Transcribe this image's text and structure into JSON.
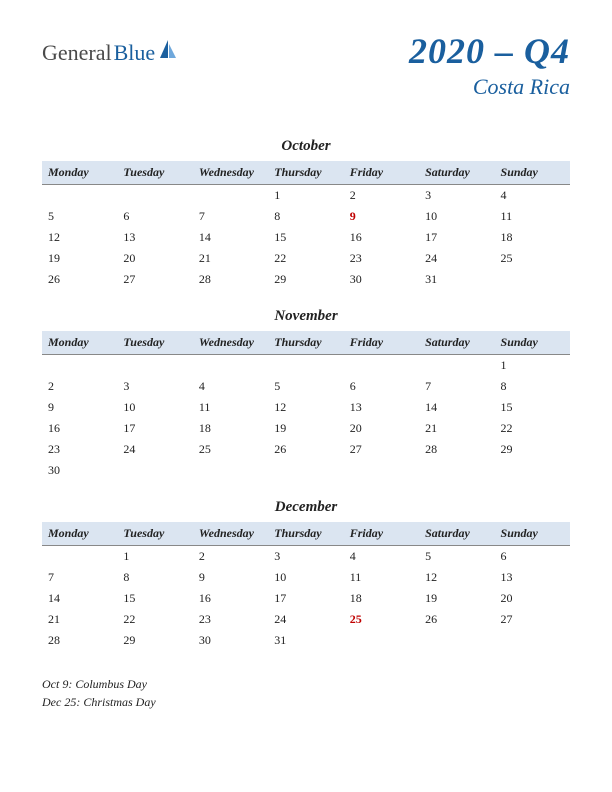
{
  "logo": {
    "part1": "General",
    "part2": "Blue"
  },
  "title": {
    "main": "2020 – Q4",
    "sub": "Costa Rica"
  },
  "day_headers": [
    "Monday",
    "Tuesday",
    "Wednesday",
    "Thursday",
    "Friday",
    "Saturday",
    "Sunday"
  ],
  "colors": {
    "header_bg": "#dbe5f1",
    "brand_blue": "#1a5f9e",
    "holiday_red": "#c00000",
    "text": "#222222",
    "background": "#ffffff"
  },
  "months": [
    {
      "name": "October",
      "weeks": [
        [
          "",
          "",
          "",
          "1",
          "2",
          "3",
          "4"
        ],
        [
          "5",
          "6",
          "7",
          "8",
          "9",
          "10",
          "11"
        ],
        [
          "12",
          "13",
          "14",
          "15",
          "16",
          "17",
          "18"
        ],
        [
          "19",
          "20",
          "21",
          "22",
          "23",
          "24",
          "25"
        ],
        [
          "26",
          "27",
          "28",
          "29",
          "30",
          "31",
          ""
        ]
      ],
      "holidays": [
        "9"
      ]
    },
    {
      "name": "November",
      "weeks": [
        [
          "",
          "",
          "",
          "",
          "",
          "",
          "1"
        ],
        [
          "2",
          "3",
          "4",
          "5",
          "6",
          "7",
          "8"
        ],
        [
          "9",
          "10",
          "11",
          "12",
          "13",
          "14",
          "15"
        ],
        [
          "16",
          "17",
          "18",
          "19",
          "20",
          "21",
          "22"
        ],
        [
          "23",
          "24",
          "25",
          "26",
          "27",
          "28",
          "29"
        ],
        [
          "30",
          "",
          "",
          "",
          "",
          "",
          ""
        ]
      ],
      "holidays": []
    },
    {
      "name": "December",
      "weeks": [
        [
          "",
          "1",
          "2",
          "3",
          "4",
          "5",
          "6"
        ],
        [
          "7",
          "8",
          "9",
          "10",
          "11",
          "12",
          "13"
        ],
        [
          "14",
          "15",
          "16",
          "17",
          "18",
          "19",
          "20"
        ],
        [
          "21",
          "22",
          "23",
          "24",
          "25",
          "26",
          "27"
        ],
        [
          "28",
          "29",
          "30",
          "31",
          "",
          "",
          ""
        ]
      ],
      "holidays": [
        "25"
      ]
    }
  ],
  "holiday_list": [
    "Oct 9: Columbus Day",
    "Dec 25: Christmas Day"
  ]
}
